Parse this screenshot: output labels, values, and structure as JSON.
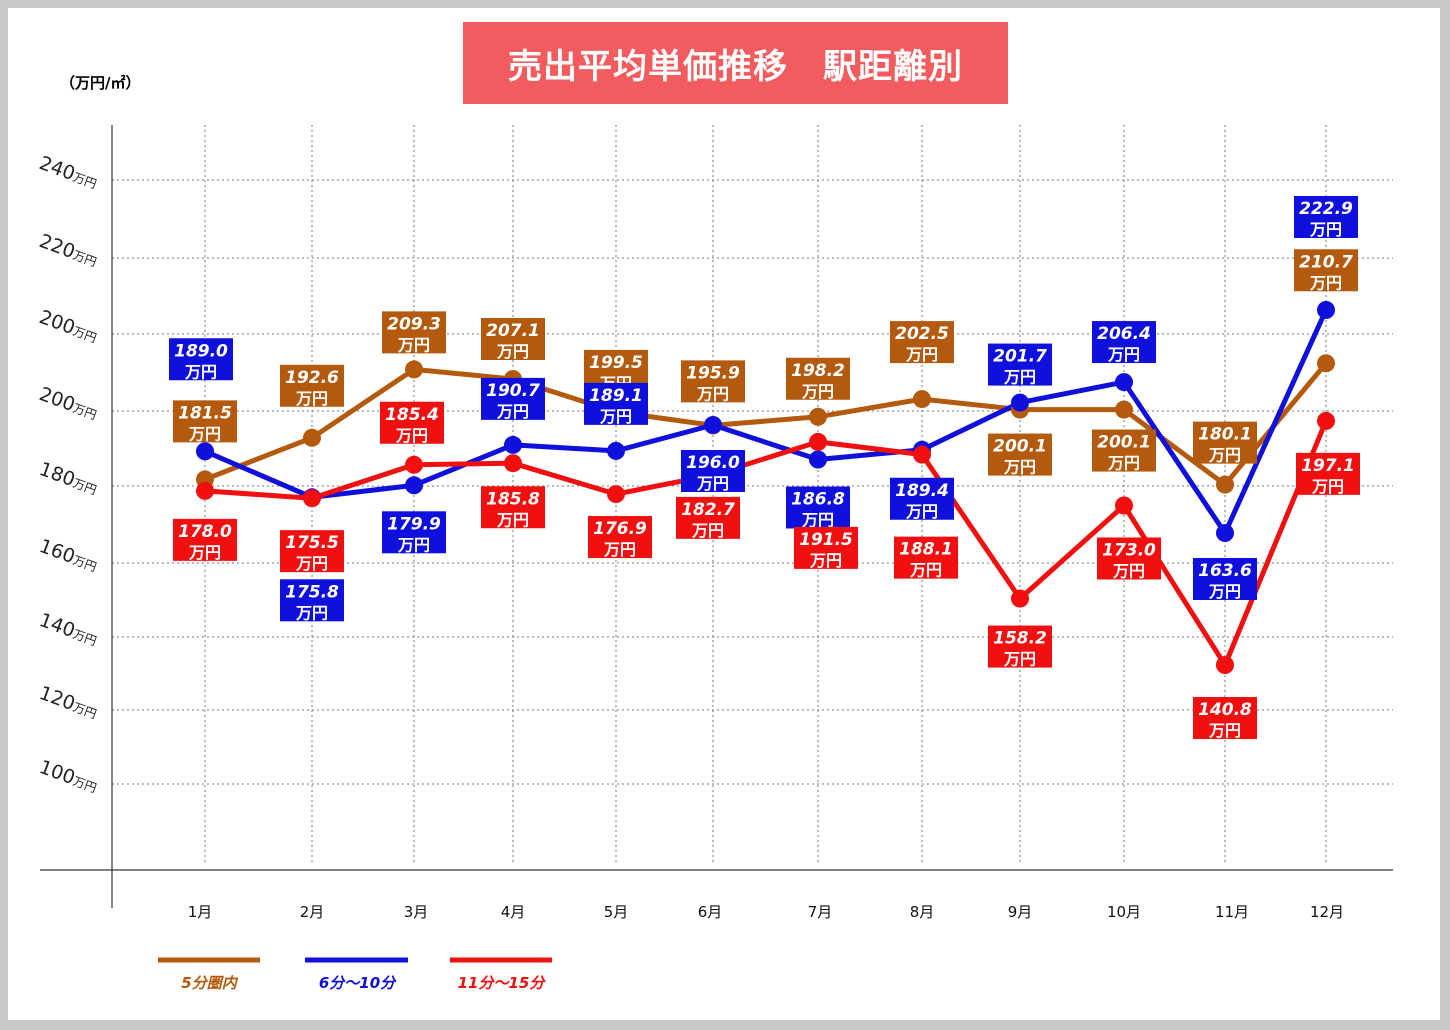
{
  "chart_data": {
    "type": "line",
    "title": "売出平均単価推移　駅距離別",
    "unit_label": "（万円/㎡）",
    "categories": [
      "1月",
      "2月",
      "3月",
      "4月",
      "5月",
      "6月",
      "7月",
      "8月",
      "9月",
      "10月",
      "11月",
      "12月"
    ],
    "y_ticks": [
      "240",
      "220",
      "200",
      "200",
      "180",
      "160",
      "140",
      "120",
      "100"
    ],
    "y_tick_unit": "万円",
    "value_unit": "万円",
    "grid": true,
    "legend_position": "bottom-left",
    "series": [
      {
        "name": "5分圏内",
        "color": "#b35a0e",
        "values": [
          181.5,
          192.6,
          209.3,
          207.1,
          199.5,
          195.9,
          198.2,
          202.5,
          200.1,
          200.1,
          180.1,
          210.7
        ],
        "labels": [
          "181.5",
          "192.6",
          "209.3",
          "207.1",
          "199.5",
          "195.9",
          "198.2",
          "202.5",
          "200.1",
          "200.1",
          "180.1",
          "210.7"
        ]
      },
      {
        "name": "6分～10分",
        "color": "#1010dd",
        "values": [
          189.0,
          175.8,
          179.9,
          190.7,
          189.1,
          196.0,
          186.8,
          189.4,
          201.7,
          206.4,
          163.6,
          222.9
        ],
        "labels": [
          "189.0",
          "175.8",
          "179.9",
          "190.7",
          "189.1",
          "196.0",
          "186.8",
          "189.4",
          "201.7",
          "206.4",
          "163.6",
          "222.9"
        ]
      },
      {
        "name": "11分～15分",
        "color": "#f01010",
        "values": [
          178.0,
          175.5,
          185.4,
          185.8,
          176.9,
          182.7,
          191.5,
          188.1,
          158.2,
          173.0,
          140.8,
          197.1
        ],
        "labels": [
          "178.0",
          "175.5",
          "185.4",
          "185.8",
          "176.9",
          "182.7",
          "191.5",
          "188.1",
          "158.2",
          "173.0",
          "140.8",
          "197.1"
        ]
      }
    ]
  }
}
